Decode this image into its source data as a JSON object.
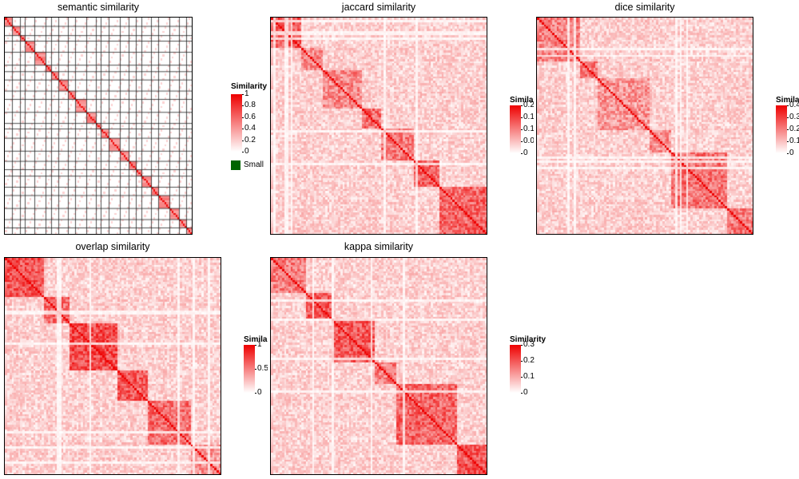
{
  "chart_data": [
    {
      "type": "heatmap",
      "title": "semantic similarity",
      "legend_title": "Similarity",
      "color_low": "#ffffff",
      "color_high": "#ee0000",
      "ticks": [
        "1",
        "0.8",
        "0.6",
        "0.4",
        "0.2",
        "0"
      ],
      "tick_values": [
        1,
        0.8,
        0.6,
        0.4,
        0.2,
        0
      ],
      "value_range": [
        0,
        1
      ],
      "extra_legend": {
        "label": "Small",
        "color": "#006400"
      },
      "blocks": [
        4,
        4,
        3,
        5,
        6,
        3,
        4,
        5,
        4,
        6,
        5,
        3,
        4,
        6,
        5,
        4,
        3,
        5,
        4,
        6,
        5,
        4,
        3
      ],
      "blocky": true
    },
    {
      "type": "heatmap",
      "title": "jaccard similarity",
      "legend_title": "Similarity",
      "color_low": "#ffffff",
      "color_high": "#ee0000",
      "ticks": [
        "0.2",
        "0.1",
        "0.1",
        "0.0",
        "0"
      ],
      "tick_values": [
        0.2,
        0.15,
        0.1,
        0.05,
        0
      ],
      "value_range": [
        0,
        0.2
      ],
      "blocks": [
        14,
        10,
        18,
        9,
        15,
        12,
        22
      ],
      "blocky": false
    },
    {
      "type": "heatmap",
      "title": "dice similarity",
      "legend_title": "Simila",
      "color_low": "#ffffff",
      "color_high": "#ee0000",
      "ticks": [
        "0.4",
        "0.3",
        "0.2",
        "0.1",
        "0"
      ],
      "tick_values": [
        0.4,
        0.3,
        0.2,
        0.1,
        0
      ],
      "value_range": [
        0,
        0.4
      ],
      "blocks": [
        20,
        8,
        24,
        10,
        26,
        12
      ],
      "blocky": false
    },
    {
      "type": "heatmap",
      "title": "overlap similarity",
      "legend_title": "Simila",
      "color_low": "#ffffff",
      "color_high": "#ee0000",
      "ticks": [
        "1",
        "0.5",
        "0"
      ],
      "tick_values": [
        1,
        0.5,
        0
      ],
      "value_range": [
        0,
        1
      ],
      "blocks": [
        18,
        12,
        22,
        14,
        20,
        14
      ],
      "blocky": false
    },
    {
      "type": "heatmap",
      "title": "kappa similarity",
      "legend_title": "Similarity",
      "color_low": "#ffffff",
      "color_high": "#ee0000",
      "ticks": [
        "0.3",
        "0.2",
        "0.1",
        "0"
      ],
      "tick_values": [
        0.3,
        0.2,
        0.1,
        0
      ],
      "value_range": [
        0,
        0.3
      ],
      "blocks": [
        16,
        12,
        20,
        10,
        28,
        14
      ],
      "blocky": false
    }
  ]
}
